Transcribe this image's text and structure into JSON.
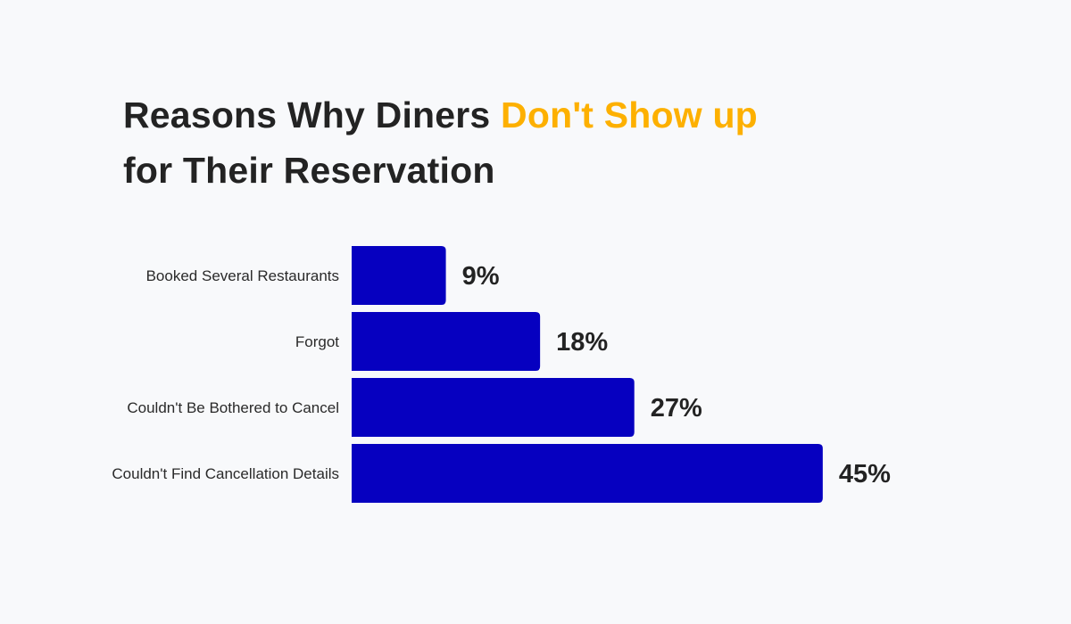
{
  "chart_data": {
    "type": "bar",
    "orientation": "horizontal",
    "title_parts": {
      "before": "Reasons Why Diners ",
      "highlight": "Don't Show up",
      "after": " for Their Reservation"
    },
    "categories": [
      "Booked Several Restaurants",
      "Forgot",
      "Couldn't Be Bothered to Cancel",
      "Couldn't Find Cancellation Details"
    ],
    "values": [
      9,
      18,
      27,
      45
    ],
    "data_labels": [
      "9%",
      "18%",
      "27%",
      "45%"
    ],
    "unit": "%",
    "grid": false,
    "legend": "none",
    "colors": {
      "bar": "#0600c0",
      "title": "#232323",
      "highlight": "#fdb000",
      "background": "#f8f9fb"
    }
  }
}
